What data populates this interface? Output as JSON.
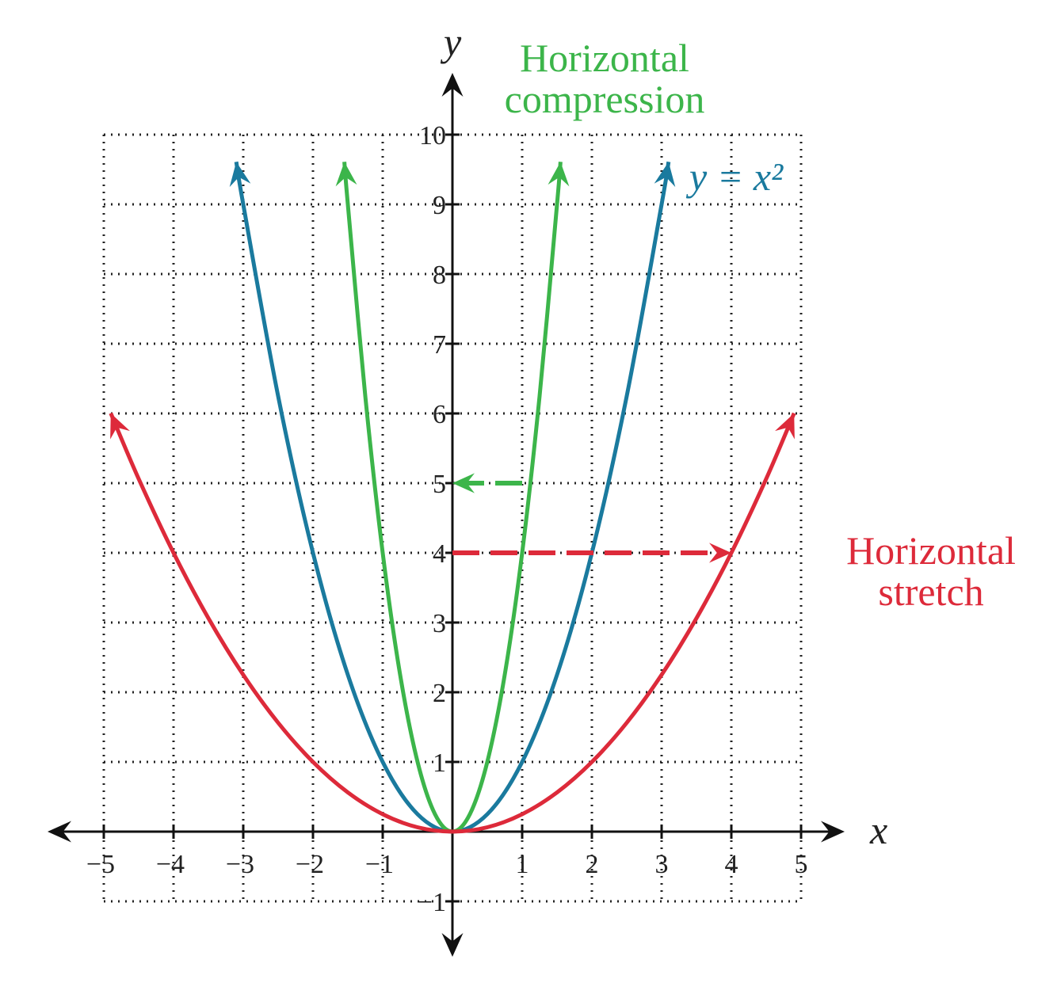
{
  "chart_data": {
    "type": "line",
    "xlabel": "x",
    "ylabel": "y",
    "xlim": [
      -5,
      5
    ],
    "ylim": [
      -1,
      10
    ],
    "xticks": [
      {
        "value": -5,
        "label": "−5"
      },
      {
        "value": -4,
        "label": "−4"
      },
      {
        "value": -3,
        "label": "−3"
      },
      {
        "value": -2,
        "label": "−2"
      },
      {
        "value": -1,
        "label": "−1"
      },
      1,
      2,
      3,
      4,
      5
    ],
    "yticks": [
      {
        "value": -1,
        "label": "−1"
      },
      1,
      2,
      3,
      4,
      5,
      6,
      7,
      8,
      9,
      10
    ],
    "grid": true,
    "series": [
      {
        "label": "y = x²",
        "color": "#1a7a9e",
        "x": [
          -3.1,
          -3,
          -2.5,
          -2,
          -1.5,
          -1,
          -0.5,
          0,
          0.5,
          1,
          1.5,
          2,
          2.5,
          3,
          3.1
        ],
        "values": [
          9.61,
          9,
          6.25,
          4,
          2.25,
          1,
          0.25,
          0,
          0.25,
          1,
          2.25,
          4,
          6.25,
          9,
          9.61
        ]
      },
      {
        "label_lines": [
          "Horizontal",
          "compression"
        ],
        "color": "#3cb54a",
        "x": [
          -1.55,
          -1.5,
          -1.25,
          -1,
          -0.75,
          -0.5,
          -0.25,
          0,
          0.25,
          0.5,
          0.75,
          1,
          1.25,
          1.5,
          1.55
        ],
        "values": [
          9.61,
          9,
          6.25,
          4,
          2.25,
          1,
          0.25,
          0,
          0.25,
          1,
          2.25,
          4,
          6.25,
          9,
          9.61
        ]
      },
      {
        "label_lines": [
          "Horizontal",
          "stretch"
        ],
        "color": "#dd2a3a",
        "x": [
          -4.9,
          -4.5,
          -4,
          -3.5,
          -3,
          -2.5,
          -2,
          -1.5,
          -1,
          -0.5,
          0,
          0.5,
          1,
          1.5,
          2,
          2.5,
          3,
          3.5,
          4,
          4.5,
          4.9
        ],
        "values": [
          6.0025,
          5.0625,
          4,
          3.0625,
          2.25,
          1.5625,
          1,
          0.5625,
          0.25,
          0.0625,
          0,
          0.0625,
          0.25,
          0.5625,
          1,
          1.5625,
          2.25,
          3.0625,
          4,
          5.0625,
          6.0025
        ]
      }
    ],
    "arrows": [
      {
        "color": "#3cb54a",
        "x": [
          1,
          0
        ],
        "y": [
          5,
          5
        ]
      },
      {
        "color": "#dd2a3a",
        "x": [
          0,
          4
        ],
        "y": [
          4,
          4
        ]
      }
    ]
  }
}
